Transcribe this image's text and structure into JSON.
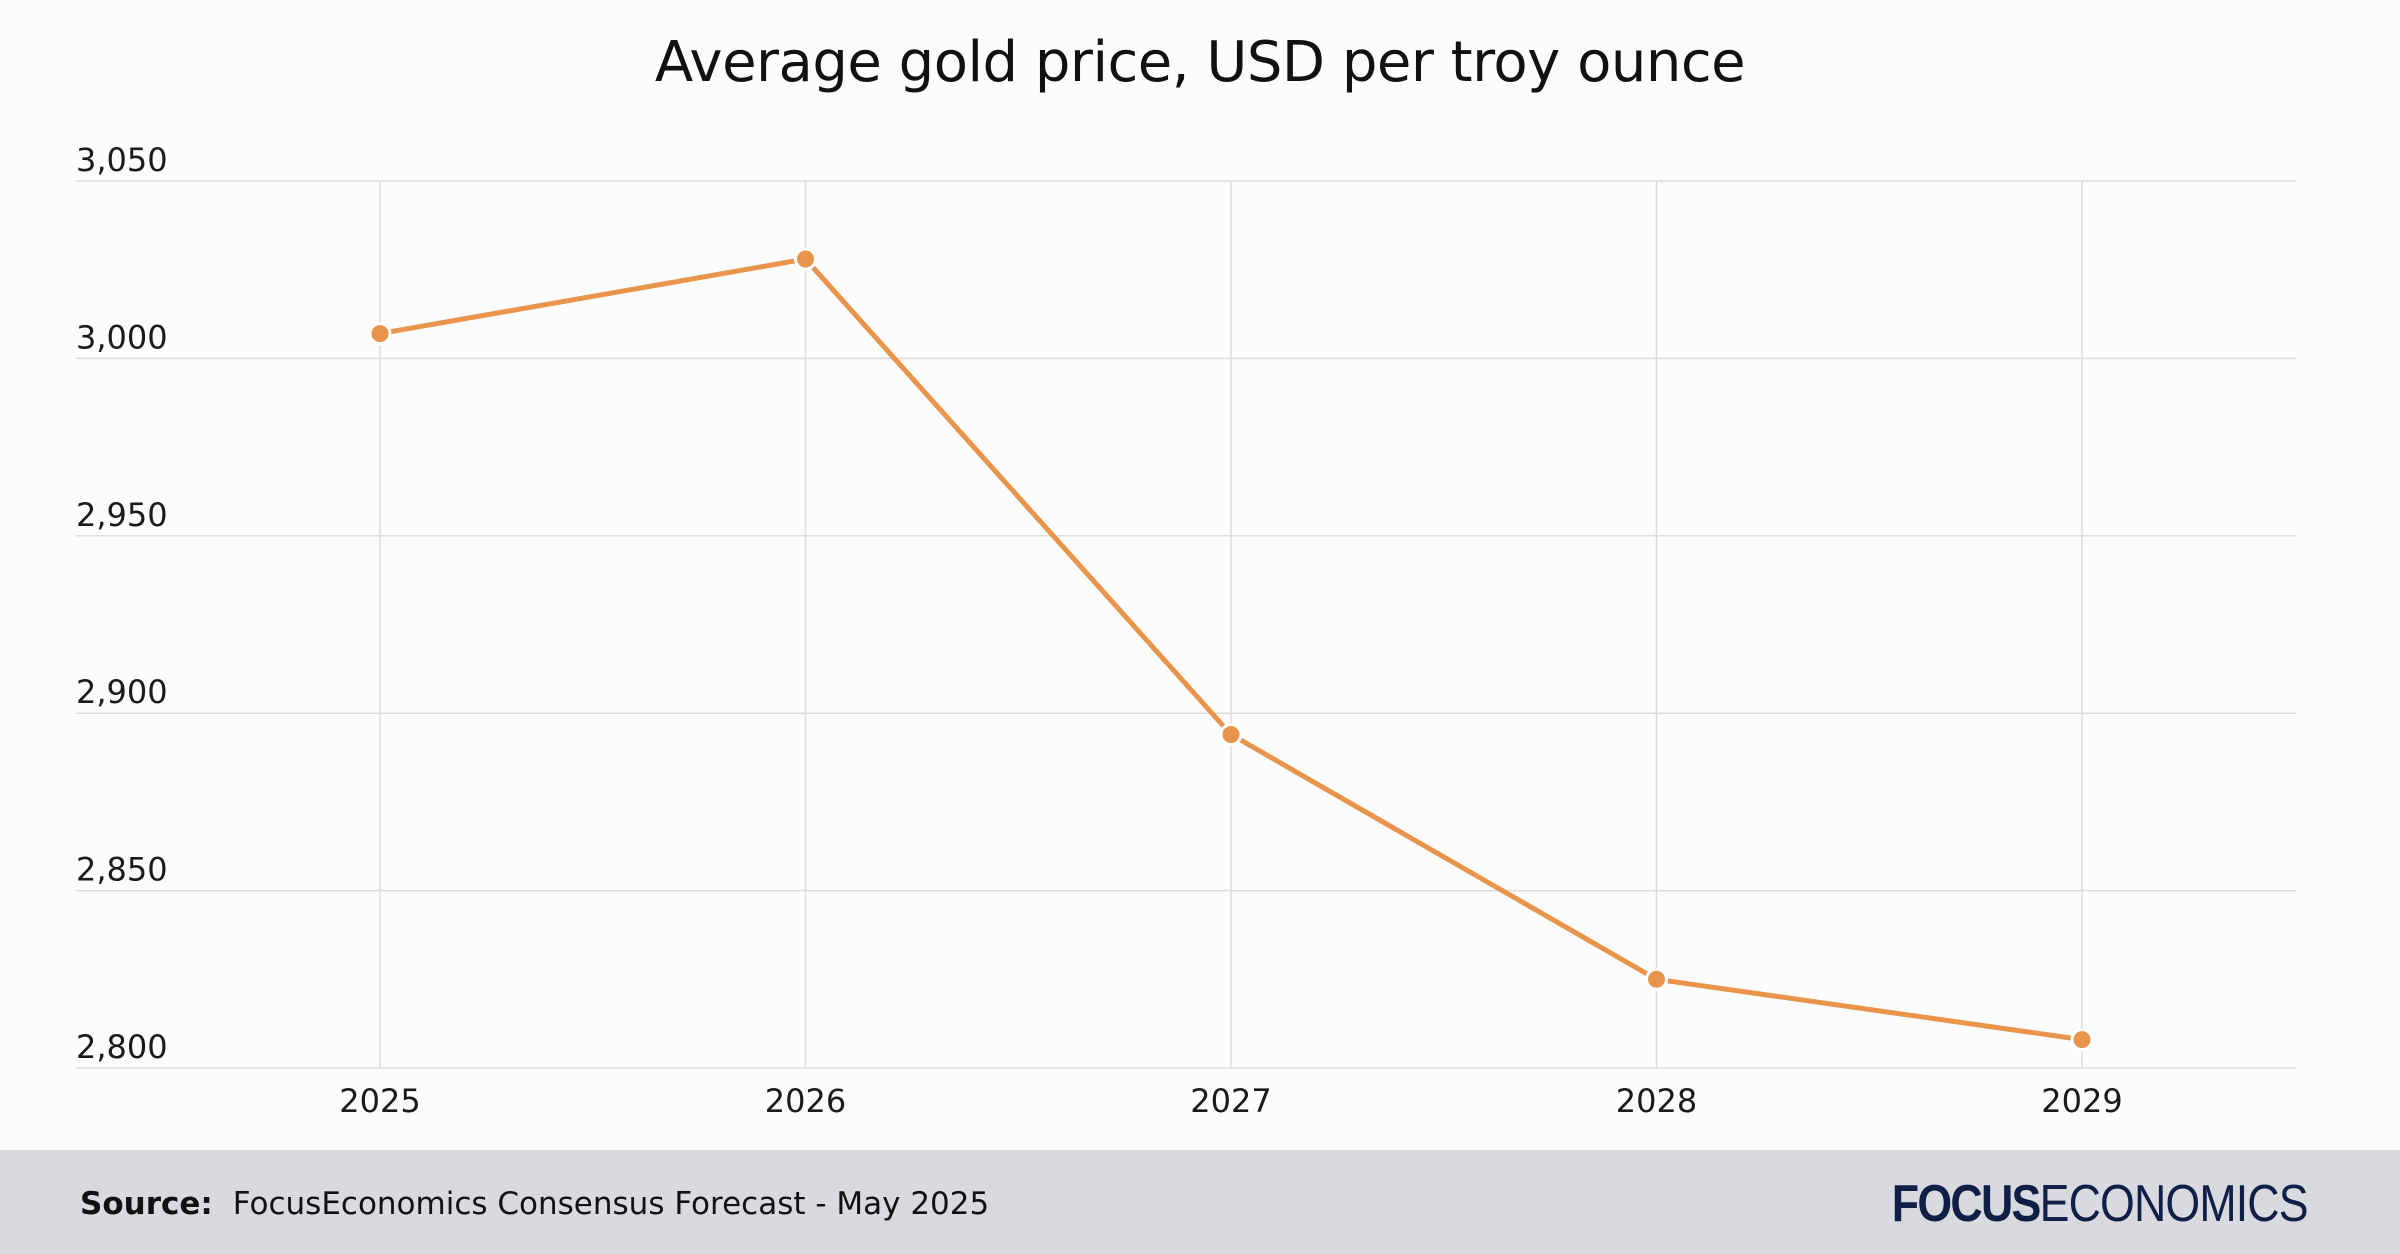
{
  "colors": {
    "background": "#fcfcfc",
    "gridline": "#dcdcdc",
    "series": "#e8944a",
    "footer_background": "#d9dadf",
    "logo": "#0f1f45"
  },
  "chart_data": {
    "type": "line",
    "title": "Average gold price, USD per troy ounce",
    "xlabel": "",
    "ylabel": "",
    "categories": [
      "2025",
      "2026",
      "2027",
      "2028",
      "2029"
    ],
    "series": [
      {
        "values": [
          3007,
          3028,
          2894,
          2825,
          2808
        ]
      }
    ],
    "ylim": [
      2800,
      3050
    ],
    "yticks": [
      2800,
      2850,
      2900,
      2950,
      3000,
      3050
    ],
    "ytick_labels": [
      "2,800",
      "2,850",
      "2,900",
      "2,950",
      "3,000",
      "3,050"
    ],
    "grid": true,
    "markers": true
  },
  "footer": {
    "source_label": "Source:",
    "source_text": "FocusEconomics Consensus Forecast - May 2025",
    "logo_bold": "FOCUS",
    "logo_light": "ECONOMICS"
  }
}
